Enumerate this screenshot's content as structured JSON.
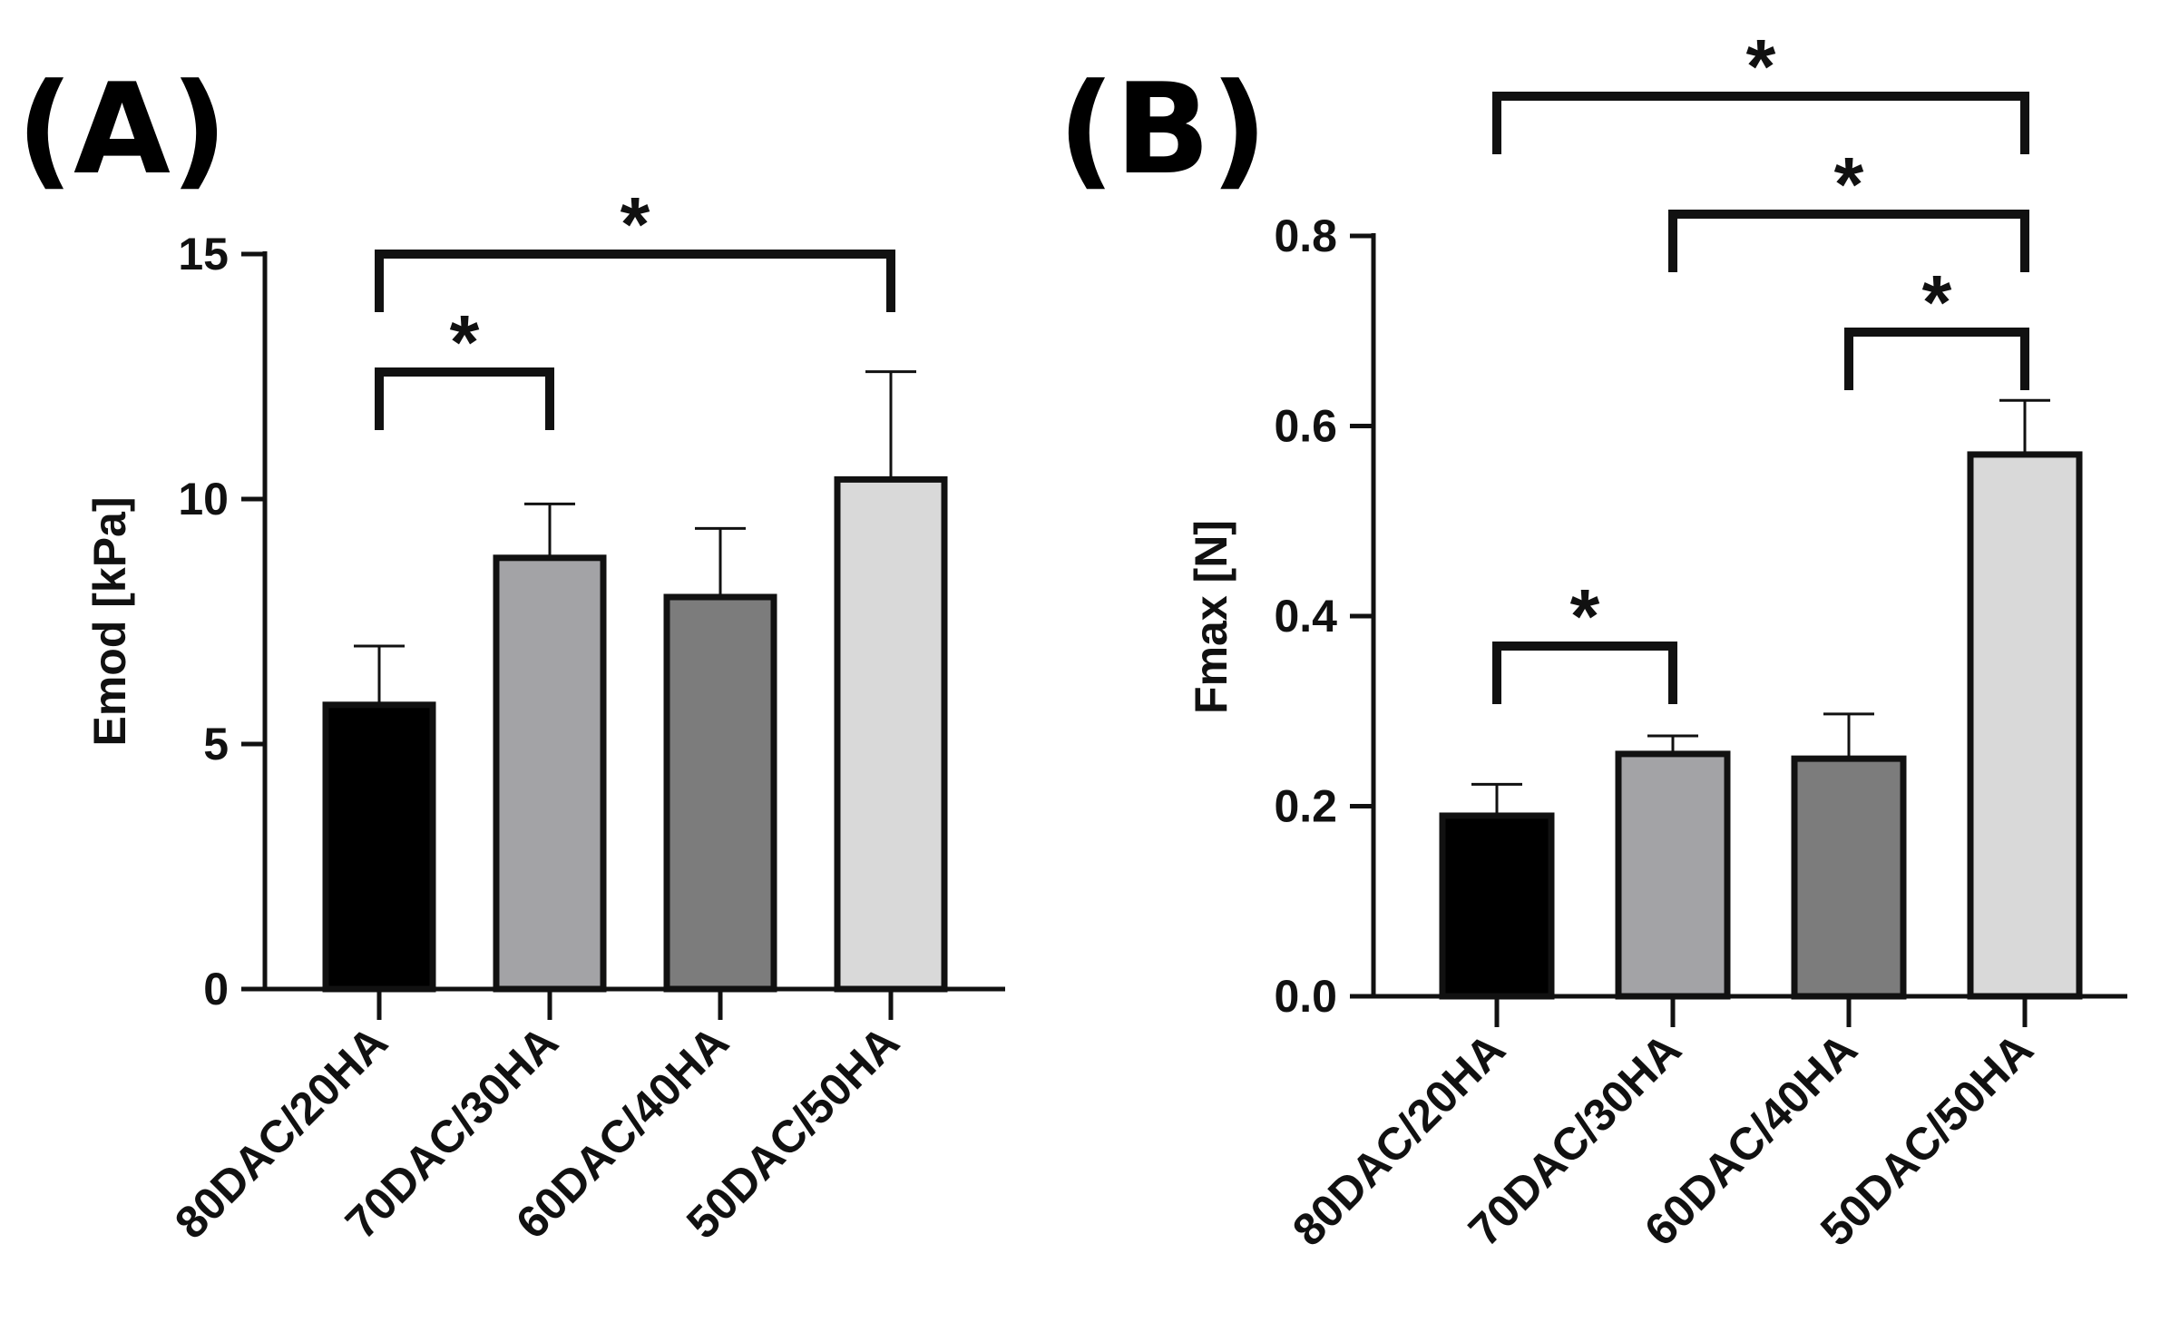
{
  "figure": {
    "panels": [
      "(A)",
      "(B)"
    ]
  },
  "chart_data": [
    {
      "type": "bar",
      "panel": "(A)",
      "title": "",
      "xlabel": "",
      "ylabel": "Emod [kPa]",
      "ylim": [
        0,
        15
      ],
      "yticks": [
        0,
        5,
        10,
        15
      ],
      "ytick_labels": [
        "0",
        "5",
        "10",
        "15"
      ],
      "categories": [
        "80DAC/20HA",
        "70DAC/30HA",
        "60DAC/40HA",
        "50DAC/50HA"
      ],
      "values": [
        5.8,
        8.8,
        8.0,
        10.4
      ],
      "errors": [
        1.2,
        1.1,
        1.4,
        2.2
      ],
      "colors": [
        "#000000",
        "#a3a3a6",
        "#7c7c7c",
        "#d9d9d9"
      ],
      "significance": [
        {
          "from": 0,
          "to": 1,
          "label": "*"
        },
        {
          "from": 0,
          "to": 3,
          "label": "*"
        }
      ]
    },
    {
      "type": "bar",
      "panel": "(B)",
      "title": "",
      "xlabel": "",
      "ylabel": "Fmax [N]",
      "ylim": [
        0,
        0.8
      ],
      "yticks": [
        0,
        0.2,
        0.4,
        0.6,
        0.8
      ],
      "ytick_labels": [
        "0.0",
        "0.2",
        "0.4",
        "0.6",
        "0.8"
      ],
      "categories": [
        "80DAC/20HA",
        "70DAC/30HA",
        "60DAC/40HA",
        "50DAC/50HA"
      ],
      "values": [
        0.19,
        0.255,
        0.25,
        0.57
      ],
      "errors": [
        0.033,
        0.019,
        0.047,
        0.057
      ],
      "colors": [
        "#000000",
        "#a3a3a6",
        "#7c7c7c",
        "#d9d9d9"
      ],
      "significance": [
        {
          "from": 0,
          "to": 1,
          "label": "*"
        },
        {
          "from": 2,
          "to": 3,
          "label": "*"
        },
        {
          "from": 1,
          "to": 3,
          "label": "*"
        },
        {
          "from": 0,
          "to": 3,
          "label": "*"
        }
      ]
    }
  ]
}
